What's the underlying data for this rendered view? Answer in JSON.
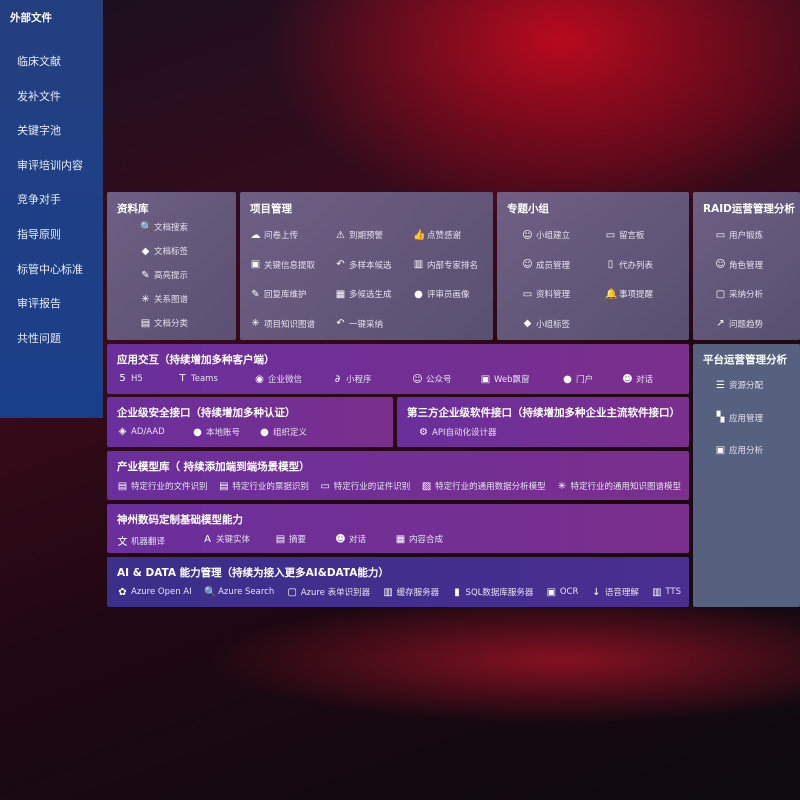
{
  "external": {
    "title": "外部文件",
    "items": [
      "临床文献",
      "发补文件",
      "关键字池",
      "审评培训内容",
      "竞争对手",
      "指导原则",
      "标管中心标准",
      "审评报告",
      "共性问题"
    ]
  },
  "library": {
    "title": "资料库",
    "items": [
      {
        "label": "文档搜索",
        "icon": "doc-search-icon"
      },
      {
        "label": "文档标签",
        "icon": "tag-icon"
      },
      {
        "label": "高亮提示",
        "icon": "pen-icon"
      },
      {
        "label": "关系图谱",
        "icon": "graph-icon"
      },
      {
        "label": "文档分类",
        "icon": "doc-category-icon"
      }
    ]
  },
  "project": {
    "title": "项目管理",
    "items": [
      {
        "label": "问卷上传",
        "icon": "cloud-upload-icon"
      },
      {
        "label": "到期预警",
        "icon": "alarm-icon"
      },
      {
        "label": "点赞感谢",
        "icon": "thumbs-up-icon"
      },
      {
        "label": "关键信息提取",
        "icon": "window-icon"
      },
      {
        "label": "多样本候选",
        "icon": "reply-icon"
      },
      {
        "label": "内部专家排名",
        "icon": "ranking-icon"
      },
      {
        "label": "回复库维护",
        "icon": "edit-icon"
      },
      {
        "label": "多候选生成",
        "icon": "puzzle-icon"
      },
      {
        "label": "评审员画像",
        "icon": "user-icon"
      },
      {
        "label": "项目知识图谱",
        "icon": "graph-icon"
      },
      {
        "label": "一键采纳",
        "icon": "reply-icon"
      }
    ]
  },
  "group": {
    "title": "专题小组",
    "items": [
      {
        "label": "小组建立",
        "icon": "group-icon"
      },
      {
        "label": "留言板",
        "icon": "bbs-icon"
      },
      {
        "label": "成员管理",
        "icon": "user-add-icon"
      },
      {
        "label": "代办列表",
        "icon": "clipboard-icon"
      },
      {
        "label": "资料管理",
        "icon": "folder-icon"
      },
      {
        "label": "事项提醒",
        "icon": "bell-icon"
      },
      {
        "label": "小组标签",
        "icon": "tag-icon"
      }
    ]
  },
  "raid": {
    "title": "RAID运营管理分析",
    "items": [
      {
        "label": "用户锻炼",
        "icon": "id-card-icon"
      },
      {
        "label": "角色管理",
        "icon": "users-icon"
      },
      {
        "label": "采纳分析",
        "icon": "qa-icon"
      },
      {
        "label": "问题趋势",
        "icon": "trend-icon"
      }
    ]
  },
  "platform": {
    "title": "平台运营管理分析",
    "items": [
      {
        "label": "资源分配",
        "icon": "list-icon"
      },
      {
        "label": "应用管理",
        "icon": "apps-icon"
      },
      {
        "label": "应用分析",
        "icon": "analysis-icon"
      }
    ]
  },
  "app": {
    "title": "应用交互（持续增加多种客户端）",
    "items": [
      {
        "label": "H5",
        "icon": "html5-icon"
      },
      {
        "label": "Teams",
        "icon": "teams-icon"
      },
      {
        "label": "企业微信",
        "icon": "wechat-icon"
      },
      {
        "label": "小程序",
        "icon": "miniprogram-icon"
      },
      {
        "label": "公众号",
        "icon": "official-account-icon"
      },
      {
        "label": "Web飘窗",
        "icon": "window-icon"
      },
      {
        "label": "门户",
        "icon": "portal-icon"
      },
      {
        "label": "对话",
        "icon": "chat-icon"
      }
    ]
  },
  "security": {
    "title": "企业级安全接口（持续增加多种认证）",
    "items": [
      {
        "label": "AD/AAD",
        "icon": "ad-icon"
      },
      {
        "label": "本地账号",
        "icon": "user-icon"
      },
      {
        "label": "组织定义",
        "icon": "org-icon"
      }
    ]
  },
  "thirdparty": {
    "title": "第三方企业级软件接口（持续增加多种企业主流软件接口）",
    "items": [
      {
        "label": "API自动化设计器",
        "icon": "gear-icon"
      }
    ]
  },
  "industry": {
    "title": "产业模型库（ 持续添加端到端场景模型）",
    "items": [
      {
        "label": "特定行业的文件识别",
        "icon": "file-icon"
      },
      {
        "label": "特定行业的票据识别",
        "icon": "receipt-icon"
      },
      {
        "label": "特定行业的证件识别",
        "icon": "id-card-icon"
      },
      {
        "label": "特定行业的通用数据分析模型",
        "icon": "chart-icon"
      },
      {
        "label": "特定行业的通用知识图谱模型",
        "icon": "graph-icon"
      }
    ]
  },
  "base": {
    "title": "神州数码定制基础模型能力",
    "items": [
      {
        "label": "机器翻译",
        "icon": "translate-icon"
      },
      {
        "label": "关键实体",
        "icon": "entity-icon"
      },
      {
        "label": "摘要",
        "icon": "doc-icon"
      },
      {
        "label": "对话",
        "icon": "chat-icon"
      },
      {
        "label": "内容合成",
        "icon": "puzzle-icon"
      }
    ]
  },
  "ai": {
    "title": "AI & DATA 能力管理（持续为接入更多AI&DATA能力）",
    "items": [
      {
        "label": "Azure Open AI",
        "icon": "openai-icon"
      },
      {
        "label": "Azure Search",
        "icon": "search-icon"
      },
      {
        "label": "Azure 表单识别器",
        "icon": "form-icon"
      },
      {
        "label": "缓存服务器",
        "icon": "cache-icon"
      },
      {
        "label": "SQL数据库服务器",
        "icon": "database-icon"
      },
      {
        "label": "OCR",
        "icon": "ocr-icon"
      },
      {
        "label": "语音理解",
        "icon": "speech-icon"
      },
      {
        "label": "TTS",
        "icon": "tts-icon"
      }
    ]
  }
}
